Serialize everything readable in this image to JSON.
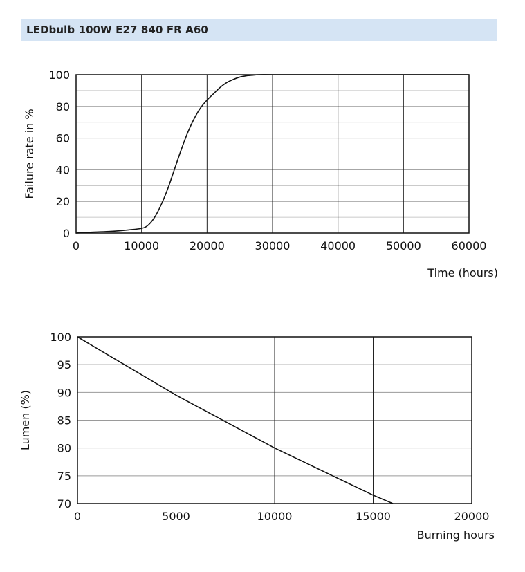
{
  "header": {
    "title": "LEDbulb 100W E27 840 FR A60"
  },
  "chart_data": [
    {
      "type": "line",
      "title": "",
      "xlabel": "Time (hours)",
      "ylabel": "Failure rate in %",
      "xlim": [
        0,
        60000
      ],
      "ylim": [
        0,
        100
      ],
      "xticks": [
        0,
        10000,
        20000,
        30000,
        40000,
        50000,
        60000
      ],
      "yticks": [
        0,
        20,
        40,
        60,
        80,
        100
      ],
      "grid": true,
      "series": [
        {
          "x": [
            0,
            2000,
            5000,
            8000,
            10000,
            11000,
            12000,
            13000,
            14000,
            15000,
            16000,
            17000,
            18000,
            19000,
            20000,
            21000,
            22000,
            23000,
            24000,
            25000,
            26000,
            27000,
            28000,
            30000,
            35000,
            60000
          ],
          "values": [
            0,
            0.5,
            1,
            2,
            3,
            5,
            10,
            18,
            28,
            40,
            52,
            63,
            72,
            79,
            84,
            88,
            92,
            95,
            97,
            98.5,
            99.3,
            99.7,
            100,
            100,
            100,
            100
          ]
        }
      ]
    },
    {
      "type": "line",
      "title": "",
      "xlabel": "Burning hours",
      "ylabel": "Lumen (%)",
      "xlim": [
        0,
        20000
      ],
      "ylim": [
        70,
        100
      ],
      "xticks": [
        0,
        5000,
        10000,
        15000,
        20000
      ],
      "yticks": [
        70,
        75,
        80,
        85,
        90,
        95,
        100
      ],
      "grid": true,
      "series": [
        {
          "x": [
            0,
            5000,
            10000,
            15000,
            16000
          ],
          "values": [
            100,
            89.5,
            80,
            71.5,
            70
          ]
        }
      ]
    }
  ]
}
